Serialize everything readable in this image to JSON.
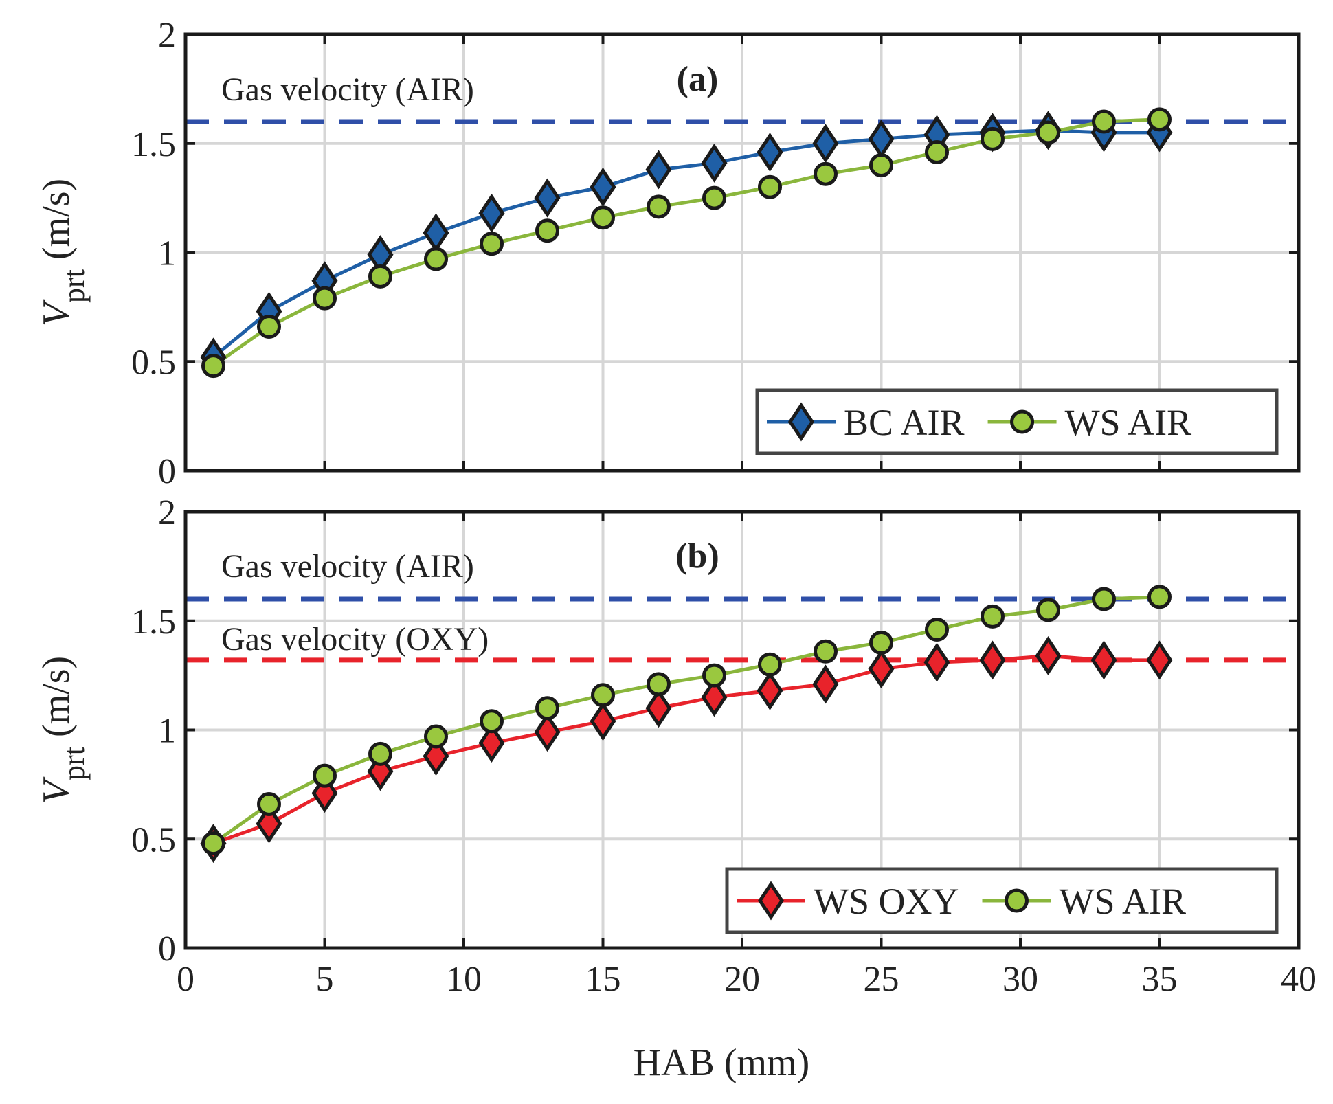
{
  "figure": {
    "xlabel": "HAB (mm)"
  },
  "chart_data": [
    {
      "type": "line",
      "panel_label": "(a)",
      "xlim": [
        0,
        40
      ],
      "ylim": [
        0,
        2
      ],
      "xticks": [
        "0",
        "5",
        "10",
        "15",
        "20",
        "25",
        "30",
        "35",
        "40"
      ],
      "yticks": [
        "0",
        "0.5",
        "1",
        "1.5",
        "2"
      ],
      "ylabel": {
        "main": "V",
        "sub": "prt",
        "unit": " (m/s)"
      },
      "grid": true,
      "legend_position": "bottom-right",
      "reference_lines": [
        {
          "label": "Gas velocity (AIR)",
          "y": 1.6,
          "color": "#2f4fa8"
        }
      ],
      "x": [
        1,
        3,
        5,
        7,
        9,
        11,
        13,
        15,
        17,
        19,
        21,
        23,
        25,
        27,
        29,
        31,
        33,
        35
      ],
      "series": [
        {
          "name": "BC AIR",
          "marker": "diamond",
          "line_color": "#1f5fa6",
          "fill_color": "#1f5fa6",
          "values": [
            0.52,
            0.73,
            0.87,
            0.99,
            1.09,
            1.18,
            1.25,
            1.3,
            1.38,
            1.41,
            1.46,
            1.5,
            1.52,
            1.54,
            1.55,
            1.56,
            1.55,
            1.55
          ]
        },
        {
          "name": "WS AIR",
          "marker": "circle",
          "line_color": "#8ab63c",
          "fill_color": "#9ac83f",
          "values": [
            0.48,
            0.66,
            0.79,
            0.89,
            0.97,
            1.04,
            1.1,
            1.16,
            1.21,
            1.25,
            1.3,
            1.36,
            1.4,
            1.46,
            1.52,
            1.55,
            1.6,
            1.61
          ]
        }
      ]
    },
    {
      "type": "line",
      "panel_label": "(b)",
      "xlim": [
        0,
        40
      ],
      "ylim": [
        0,
        2
      ],
      "xticks": [
        "0",
        "5",
        "10",
        "15",
        "20",
        "25",
        "30",
        "35",
        "40"
      ],
      "yticks": [
        "0",
        "0.5",
        "1",
        "1.5",
        "2"
      ],
      "ylabel": {
        "main": "V",
        "sub": "prt",
        "unit": " (m/s)"
      },
      "grid": true,
      "legend_position": "bottom-right",
      "reference_lines": [
        {
          "label": "Gas velocity (AIR)",
          "y": 1.6,
          "color": "#2f4fa8"
        },
        {
          "label": "Gas velocity (OXY)",
          "y": 1.32,
          "color": "#e8232b"
        }
      ],
      "x": [
        1,
        3,
        5,
        7,
        9,
        11,
        13,
        15,
        17,
        19,
        21,
        23,
        25,
        27,
        29,
        31,
        33,
        35
      ],
      "series": [
        {
          "name": "WS OXY",
          "marker": "diamond",
          "line_color": "#e8232b",
          "fill_color": "#e8232b",
          "values": [
            0.48,
            0.57,
            0.71,
            0.81,
            0.88,
            0.94,
            0.99,
            1.04,
            1.1,
            1.15,
            1.18,
            1.21,
            1.28,
            1.31,
            1.32,
            1.34,
            1.32,
            1.32
          ]
        },
        {
          "name": "WS AIR",
          "marker": "circle",
          "line_color": "#8ab63c",
          "fill_color": "#9ac83f",
          "values": [
            0.48,
            0.66,
            0.79,
            0.89,
            0.97,
            1.04,
            1.1,
            1.16,
            1.21,
            1.25,
            1.3,
            1.36,
            1.4,
            1.46,
            1.52,
            1.55,
            1.6,
            1.61
          ]
        }
      ]
    }
  ]
}
